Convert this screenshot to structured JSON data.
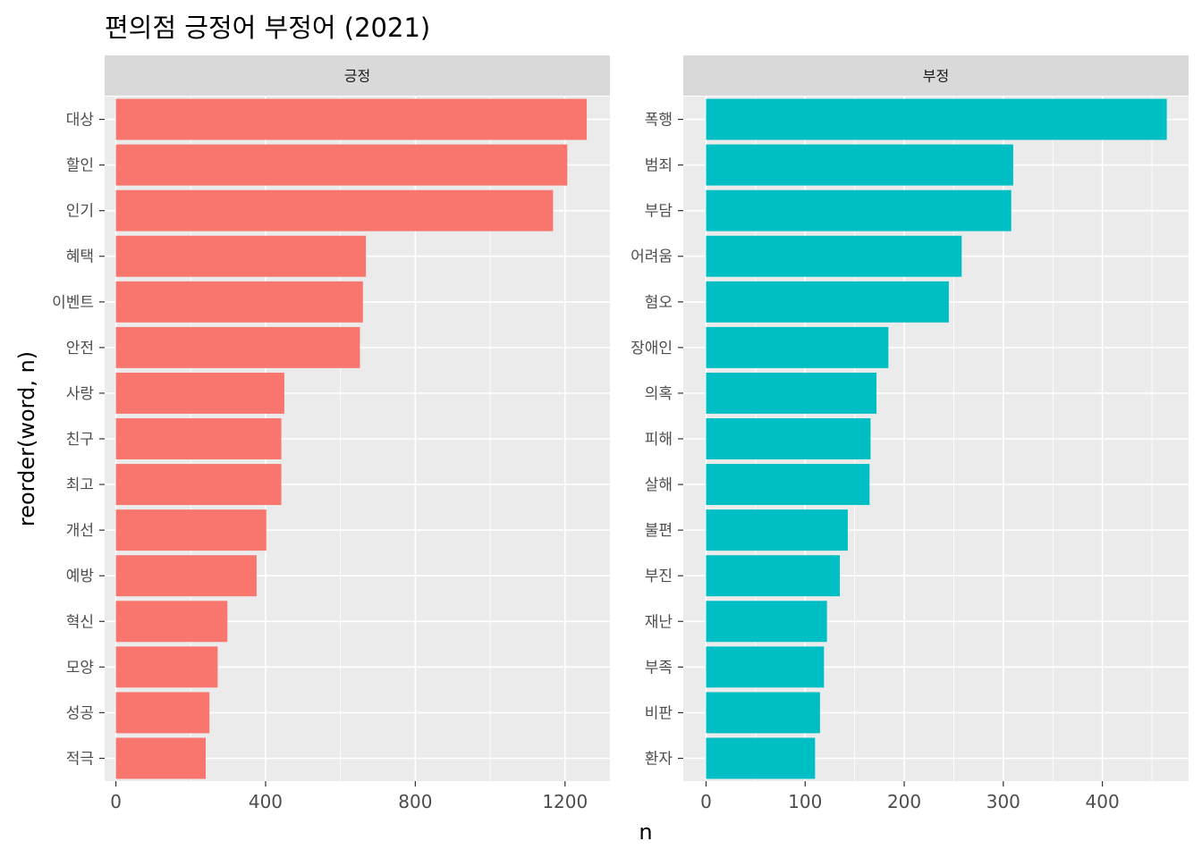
{
  "chart_data": {
    "type": "bar",
    "orientation": "horizontal",
    "title": "편의점 긍정어 부정어 (2021)",
    "xlabel": "n",
    "ylabel": "reorder(word, n)",
    "grid": true,
    "legend": "none",
    "facets": [
      {
        "name": "긍정",
        "color": "#F8766D",
        "xlim": [
          -30,
          1320
        ],
        "xticks": [
          0,
          400,
          800,
          1200
        ],
        "xtick_labels": [
          "0",
          "400",
          "800",
          "1200"
        ],
        "categories": [
          "대상",
          "할인",
          "인기",
          "혜택",
          "이벤트",
          "안전",
          "사랑",
          "친구",
          "최고",
          "개선",
          "예방",
          "혁신",
          "모양",
          "성공",
          "적극"
        ],
        "values": [
          1258,
          1206,
          1168,
          668,
          660,
          652,
          450,
          442,
          442,
          402,
          376,
          298,
          272,
          250,
          240
        ]
      },
      {
        "name": "부정",
        "color": "#00BFC4",
        "xlim": [
          -23,
          487
        ],
        "xticks": [
          0,
          100,
          200,
          300,
          400
        ],
        "xtick_labels": [
          "0",
          "100",
          "200",
          "300",
          "400"
        ],
        "categories": [
          "폭행",
          "범죄",
          "부담",
          "어려움",
          "혐오",
          "장애인",
          "의혹",
          "피해",
          "살해",
          "불편",
          "부진",
          "재난",
          "부족",
          "비판",
          "환자"
        ],
        "values": [
          465,
          310,
          308,
          258,
          245,
          184,
          172,
          166,
          165,
          143,
          135,
          122,
          119,
          115,
          110
        ]
      }
    ]
  }
}
